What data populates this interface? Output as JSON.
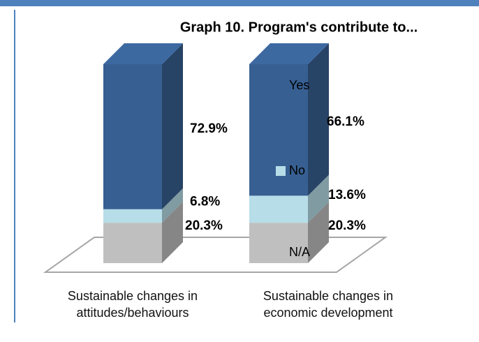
{
  "chart_data": {
    "type": "bar",
    "stacked": true,
    "title": "Graph 10. Program's contribute to...",
    "categories": [
      "Sustainable changes in attitudes/behaviours",
      "Sustainable changes in economic development"
    ],
    "series": [
      {
        "name": "N/A",
        "color": "#bfbfbf",
        "values": [
          20.3,
          20.3
        ],
        "value_labels": [
          "20.3%",
          "20.3%"
        ]
      },
      {
        "name": "No",
        "color": "#b7dde8",
        "values": [
          6.8,
          13.6
        ],
        "value_labels": [
          "6.8%",
          "13.6%"
        ]
      },
      {
        "name": "Yes",
        "color": "#375f92",
        "values": [
          72.9,
          66.1
        ],
        "value_labels": [
          "72.9%",
          "66.1%"
        ]
      }
    ],
    "ylim": [
      0,
      100
    ],
    "legend": "right"
  }
}
